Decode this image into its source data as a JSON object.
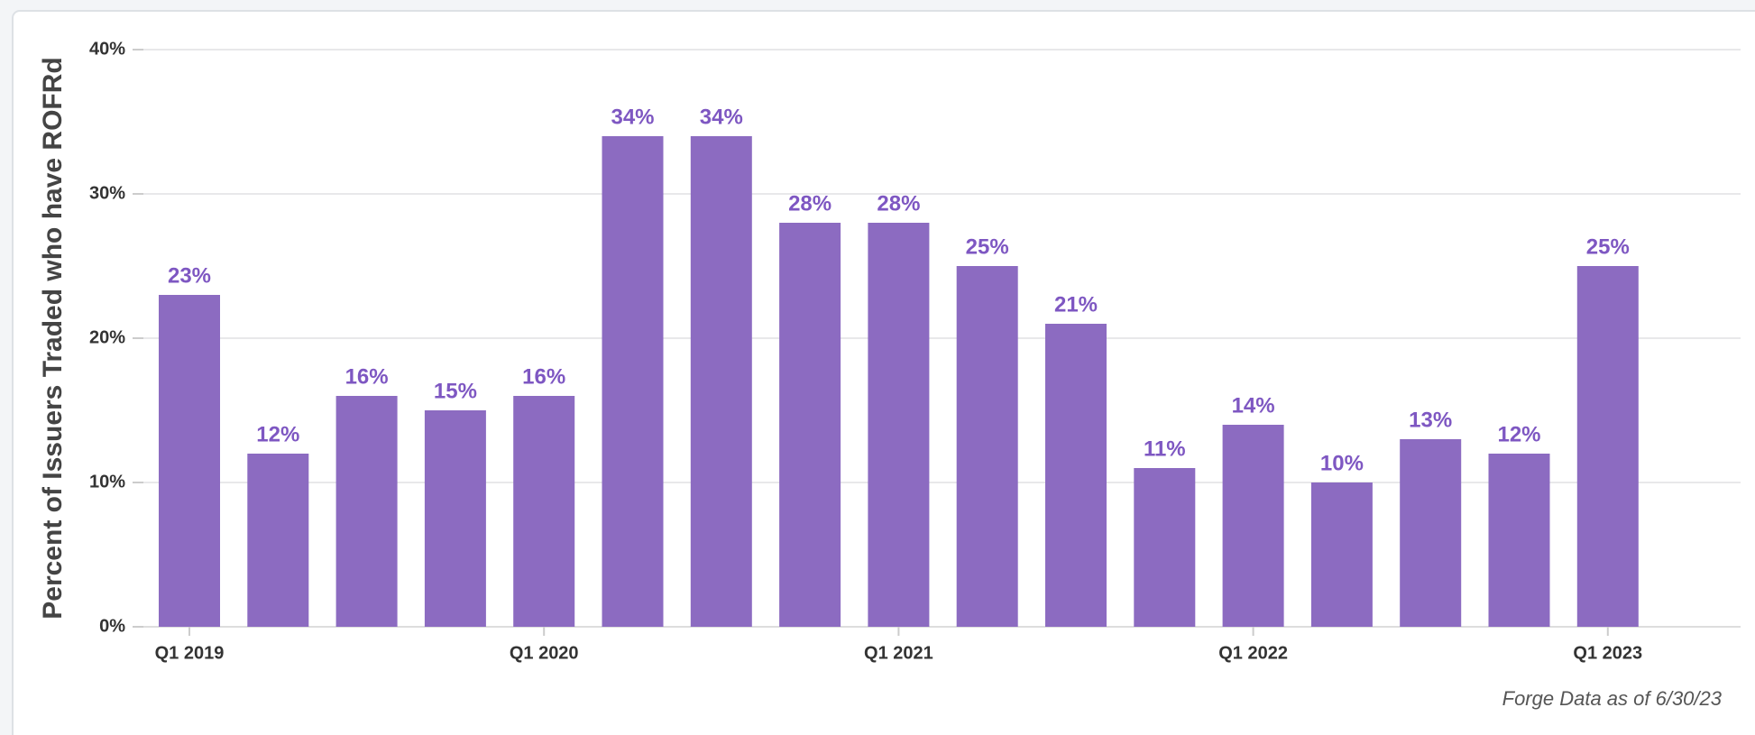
{
  "chart_data": {
    "type": "bar",
    "y_label": "Percent of Issuers Traded who have ROFRd",
    "footnote": "Forge Data as of 6/30/23",
    "categories": [
      "Q1 2019",
      null,
      null,
      null,
      "Q1 2020",
      null,
      null,
      null,
      "Q1 2021",
      null,
      null,
      null,
      "Q1 2022",
      null,
      null,
      null,
      "Q1 2023"
    ],
    "values": [
      23,
      12,
      16,
      15,
      16,
      34,
      34,
      28,
      28,
      25,
      21,
      11,
      14,
      10,
      13,
      12,
      25
    ],
    "value_labels": [
      "23%",
      "12%",
      "16%",
      "15%",
      "16%",
      "34%",
      "34%",
      "28%",
      "28%",
      "25%",
      "21%",
      "11%",
      "14%",
      "10%",
      "13%",
      "12%",
      "25%"
    ],
    "color": "#8c6bc1",
    "ylim": [
      0,
      40
    ],
    "yticks": [
      {
        "value": 0,
        "label": "0%"
      },
      {
        "value": 10,
        "label": "10%"
      },
      {
        "value": 20,
        "label": "20%"
      },
      {
        "value": 30,
        "label": "30%"
      },
      {
        "value": 40,
        "label": "40%"
      }
    ],
    "grid": true
  }
}
